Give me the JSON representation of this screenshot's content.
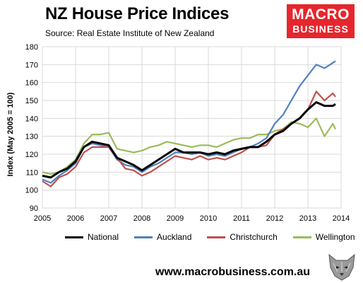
{
  "header": {
    "title": "NZ House Price Indices",
    "subtitle": "Source: Real  Estate Institute of New Zealand",
    "logo_line1": "MACRO",
    "logo_line2": "BUSINESS"
  },
  "footer": {
    "url": "www.macrobusiness.com.au"
  },
  "colors": {
    "logo_bg": "#e6262d",
    "grid": "#d9d9d9"
  },
  "chart_data": {
    "type": "line",
    "title": "NZ House Price Indices",
    "ylabel": "Index (May 2005 = 100)",
    "xlabel": "",
    "xlim": [
      2005,
      2014
    ],
    "ylim": [
      90,
      180
    ],
    "xticks": [
      "2005",
      "2006",
      "2007",
      "2008",
      "2009",
      "2010",
      "2011",
      "2012",
      "2013",
      "2014"
    ],
    "yticks": [
      90,
      100,
      110,
      120,
      130,
      140,
      150,
      160,
      170,
      180
    ],
    "grid": true,
    "legend": "bottom",
    "series": [
      {
        "name": "National",
        "color": "#000000",
        "x": [
          2005.0,
          2005.25,
          2005.5,
          2005.75,
          2006.0,
          2006.25,
          2006.5,
          2006.75,
          2007.0,
          2007.25,
          2007.5,
          2007.75,
          2008.0,
          2008.25,
          2008.5,
          2008.75,
          2009.0,
          2009.25,
          2009.5,
          2009.75,
          2010.0,
          2010.25,
          2010.5,
          2010.75,
          2011.0,
          2011.25,
          2011.5,
          2011.75,
          2012.0,
          2012.25,
          2012.5,
          2012.75,
          2013.0,
          2013.25,
          2013.5,
          2013.75,
          2013.83
        ],
        "y": [
          108,
          107,
          110,
          112,
          116,
          124,
          127,
          126,
          125,
          118,
          116,
          114,
          111,
          114,
          117,
          120,
          123,
          121,
          121,
          121,
          120,
          121,
          120,
          122,
          123,
          124,
          124,
          127,
          131,
          133,
          137,
          140,
          145,
          149,
          147,
          147,
          148
        ]
      },
      {
        "name": "Auckland",
        "color": "#4f81bd",
        "x": [
          2005.0,
          2005.25,
          2005.5,
          2005.75,
          2006.0,
          2006.25,
          2006.5,
          2006.75,
          2007.0,
          2007.25,
          2007.5,
          2007.75,
          2008.0,
          2008.25,
          2008.5,
          2008.75,
          2009.0,
          2009.25,
          2009.5,
          2009.75,
          2010.0,
          2010.25,
          2010.5,
          2010.75,
          2011.0,
          2011.25,
          2011.5,
          2011.75,
          2012.0,
          2012.25,
          2012.5,
          2012.75,
          2013.0,
          2013.25,
          2013.5,
          2013.75,
          2013.83
        ],
        "y": [
          106,
          104,
          108,
          111,
          115,
          124,
          126,
          125,
          124,
          117,
          114,
          113,
          110,
          113,
          115,
          118,
          121,
          121,
          120,
          121,
          119,
          120,
          119,
          121,
          123,
          124,
          126,
          129,
          137,
          142,
          150,
          158,
          164,
          170,
          168,
          171,
          172
        ]
      },
      {
        "name": "Christchurch",
        "color": "#c0504d",
        "x": [
          2005.0,
          2005.25,
          2005.5,
          2005.75,
          2006.0,
          2006.25,
          2006.5,
          2006.75,
          2007.0,
          2007.25,
          2007.5,
          2007.75,
          2008.0,
          2008.25,
          2008.5,
          2008.75,
          2009.0,
          2009.25,
          2009.5,
          2009.75,
          2010.0,
          2010.25,
          2010.5,
          2010.75,
          2011.0,
          2011.25,
          2011.5,
          2011.75,
          2012.0,
          2012.25,
          2012.5,
          2012.75,
          2013.0,
          2013.25,
          2013.5,
          2013.75,
          2013.83
        ],
        "y": [
          105,
          102,
          107,
          109,
          113,
          121,
          124,
          124,
          124,
          118,
          112,
          111,
          108,
          110,
          113,
          116,
          119,
          118,
          117,
          119,
          117,
          118,
          117,
          119,
          121,
          124,
          124,
          125,
          131,
          134,
          137,
          140,
          145,
          155,
          150,
          154,
          152
        ]
      },
      {
        "name": "Wellington",
        "color": "#9bbb59",
        "x": [
          2005.0,
          2005.25,
          2005.5,
          2005.75,
          2006.0,
          2006.25,
          2006.5,
          2006.75,
          2007.0,
          2007.25,
          2007.5,
          2007.75,
          2008.0,
          2008.25,
          2008.5,
          2008.75,
          2009.0,
          2009.25,
          2009.5,
          2009.75,
          2010.0,
          2010.25,
          2010.5,
          2010.75,
          2011.0,
          2011.25,
          2011.5,
          2011.75,
          2012.0,
          2012.25,
          2012.5,
          2012.75,
          2013.0,
          2013.25,
          2013.5,
          2013.75,
          2013.83
        ],
        "y": [
          110,
          109,
          110,
          113,
          117,
          126,
          131,
          131,
          132,
          123,
          122,
          121,
          122,
          124,
          125,
          127,
          126,
          125,
          124,
          125,
          125,
          124,
          126,
          128,
          129,
          129,
          131,
          131,
          133,
          134,
          138,
          137,
          135,
          140,
          130,
          137,
          134
        ]
      }
    ]
  }
}
